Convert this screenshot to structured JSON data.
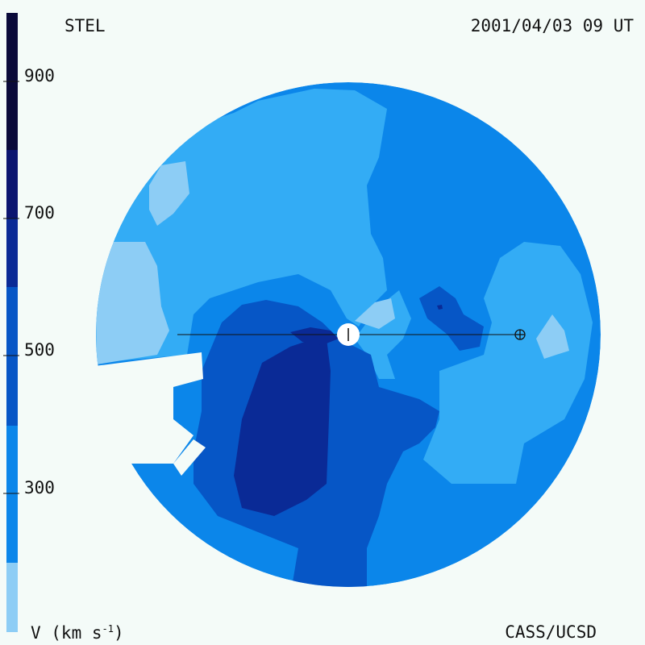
{
  "header": {
    "instrument": "STEL",
    "timestamp": "2001/04/03 09 UT"
  },
  "footer": {
    "units_label": "V (km s",
    "units_superscript": "-1",
    "units_close": ")",
    "credit": "CASS/UCSD"
  },
  "colorbar": {
    "tick_labels": [
      "900",
      "700",
      "500",
      "300"
    ],
    "colors": [
      "#0a0a3a",
      "#0b1570",
      "#0a2a96",
      "#0656c6",
      "#0b86ea",
      "#33acf5",
      "#8dcdf5"
    ]
  },
  "map": {
    "background": "#f4fbf8",
    "sun_color": "#ffffff",
    "line_color": "#111111"
  }
}
